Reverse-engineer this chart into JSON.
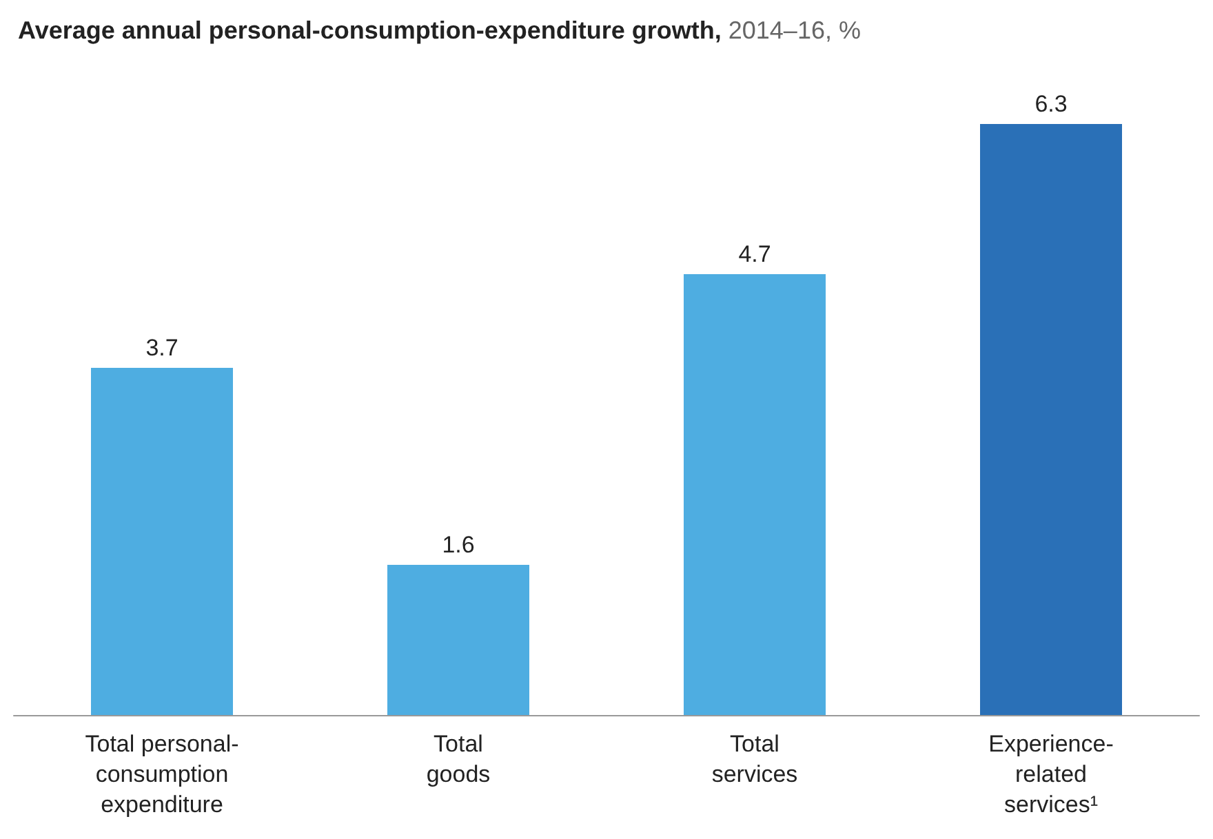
{
  "chart_data": {
    "type": "bar",
    "title": "Average annual personal-consumption-expenditure growth,",
    "subtitle": "2014–16, %",
    "categories": [
      "Total personal-\nconsumption\nexpenditure",
      "Total\ngoods",
      "Total\nservices",
      "Experience-\nrelated\nservices¹"
    ],
    "values": [
      3.7,
      1.6,
      4.7,
      6.3
    ],
    "colors": [
      "#4eade1",
      "#4eade1",
      "#4eade1",
      "#2a70b7"
    ],
    "data_labels": true
  }
}
